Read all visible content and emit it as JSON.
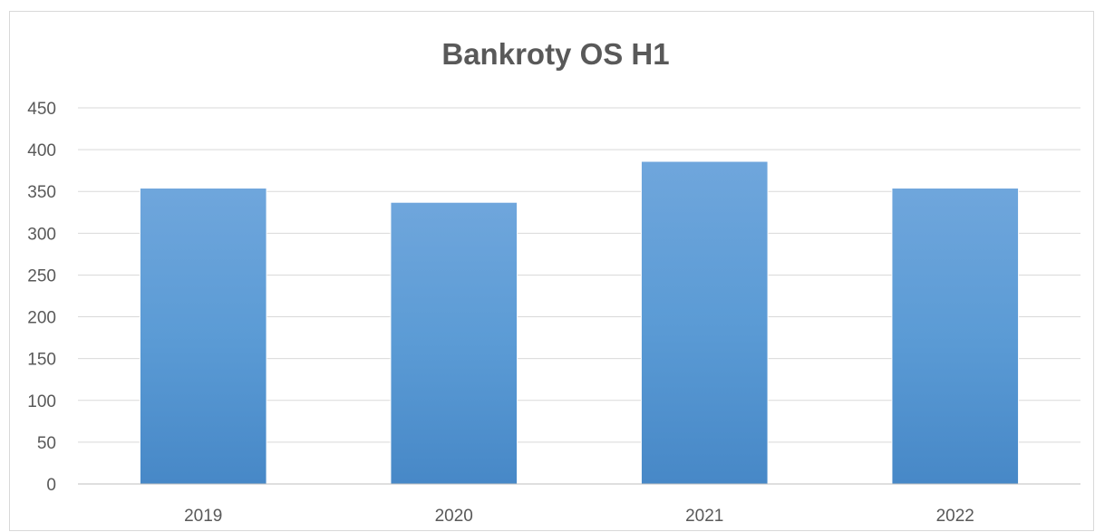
{
  "chart_data": {
    "type": "bar",
    "title": "Bankroty OS H1",
    "xlabel": "",
    "ylabel": "",
    "categories": [
      "2019",
      "2020",
      "2021",
      "2022"
    ],
    "values": [
      354,
      337,
      386,
      354
    ],
    "ylim": [
      0,
      450
    ],
    "yticks": [
      0,
      50,
      100,
      150,
      200,
      250,
      300,
      350,
      400,
      450
    ],
    "grid": true,
    "legend": "none",
    "colors": {
      "bar_top": "#6fa6dc",
      "bar_mid": "#5b9bd5",
      "bar_bottom": "#4788c7",
      "grid": "#d9d9d9",
      "axis": "#bfbfbf",
      "tick_text": "#595959",
      "title_text": "#595959"
    }
  }
}
